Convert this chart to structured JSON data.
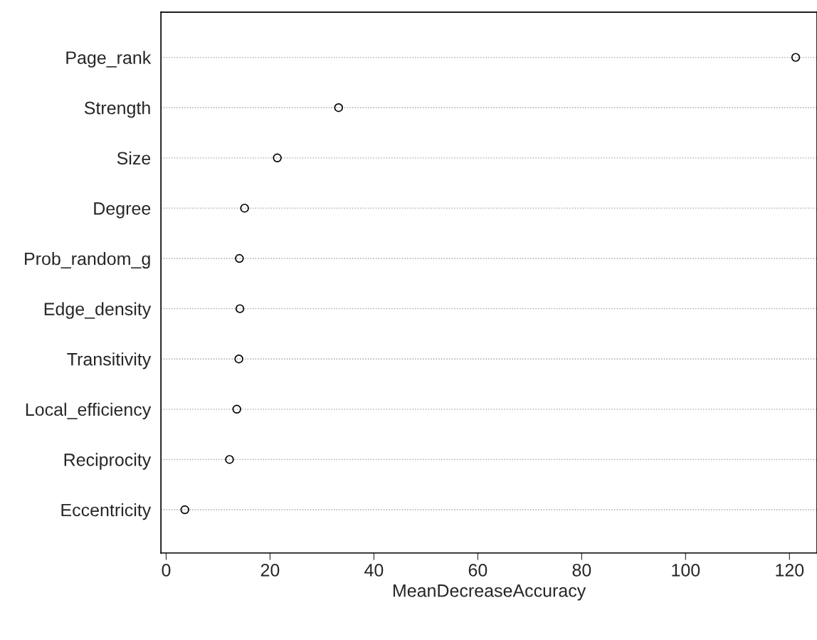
{
  "chart_data": {
    "type": "scatter",
    "orientation": "horizontal",
    "xlabel": "MeanDecreaseAccuracy",
    "categories": [
      "Page_rank",
      "Strength",
      "Size",
      "Degree",
      "Prob_random_g",
      "Edge_density",
      "Transitivity",
      "Local_efficiency",
      "Reciprocity",
      "Eccentricity"
    ],
    "values": [
      121.2,
      33.2,
      21.4,
      15.1,
      14.1,
      14.2,
      14.0,
      13.6,
      12.2,
      3.6
    ],
    "color": "#000000",
    "marker": "circle",
    "grid": "y",
    "line_style": "dotted",
    "xlim": [
      -1,
      125.3
    ],
    "xticks": [
      0,
      20,
      40,
      60,
      80,
      100,
      120
    ]
  }
}
